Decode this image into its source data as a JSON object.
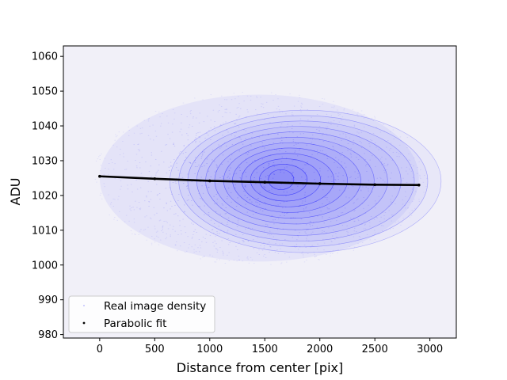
{
  "chart_data": {
    "type": "scatter",
    "title": "",
    "xlabel": "Distance from center [pix]",
    "ylabel": "ADU",
    "xlim": [
      -330,
      3240
    ],
    "ylim": [
      979,
      1063
    ],
    "xticks": [
      0,
      500,
      1000,
      1500,
      2000,
      2500,
      3000
    ],
    "yticks": [
      980,
      990,
      1000,
      1010,
      1020,
      1030,
      1040,
      1050,
      1060
    ],
    "grid": false,
    "plot_background": "#f1f0f8",
    "legend_position": "lower-left",
    "series": [
      {
        "name": "Real image density",
        "kind": "density",
        "color": "#0000ff",
        "x_range": [
          0,
          2900
        ],
        "y_range": [
          1001,
          1049
        ],
        "density_peak": {
          "x": 1890,
          "y": 1024
        },
        "contour_levels": 12
      },
      {
        "name": "Parabolic fit",
        "kind": "line",
        "color": "#000000",
        "x": [
          0,
          500,
          1000,
          1500,
          2000,
          2500,
          2900
        ],
        "y": [
          1025.5,
          1024.8,
          1024.2,
          1023.8,
          1023.4,
          1023.1,
          1023.0
        ]
      }
    ]
  }
}
